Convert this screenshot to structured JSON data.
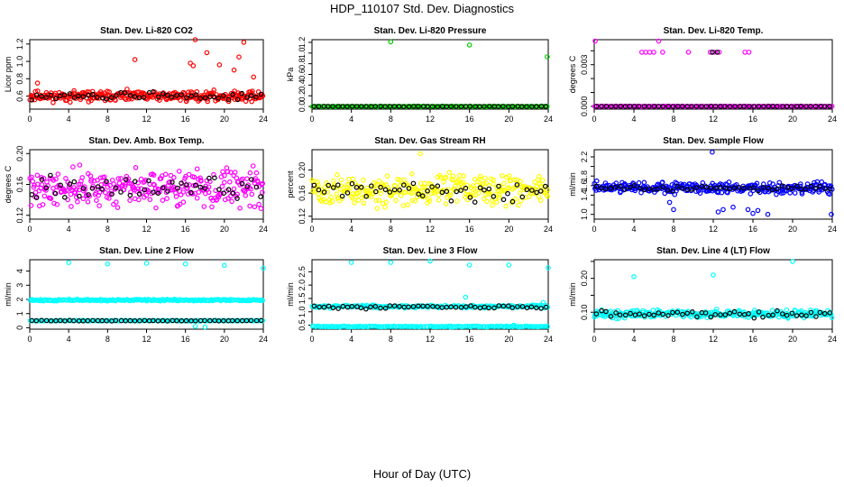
{
  "figure": {
    "title": "HDP_110107  Std. Dev. Diagnostics",
    "xlabel": "Hour of Day (UTC)"
  },
  "colors": {
    "co2": "#ff0000",
    "pressure": "#00cc00",
    "temp": "#ff00ff",
    "box": "#ff00ff",
    "rh": "#ffff00",
    "flow": "#0000ff",
    "line": "#00ffff",
    "median": "#000000"
  },
  "chart_data": [
    {
      "id": "co2",
      "type": "scatter",
      "title": "Stan. Dev. Li-820 CO2",
      "ylabel": "Licor ppm",
      "xlim": [
        0,
        24
      ],
      "xticks": [
        0,
        4,
        8,
        12,
        16,
        20,
        24
      ],
      "ylim": [
        0.45,
        1.25
      ],
      "yticks": [
        0.6,
        0.8,
        1.0,
        1.2
      ],
      "ytick_labels": [
        "0.6",
        "0.8",
        "1.0",
        "1.2"
      ],
      "series": [
        {
          "name": "all",
          "color": "co2",
          "base": 0.6,
          "spread": 0.05,
          "n": 300,
          "seed": 11,
          "outliers": [
            [
              0.8,
              0.75
            ],
            [
              10.8,
              1.02
            ],
            [
              16.5,
              0.98
            ],
            [
              16.8,
              0.95
            ],
            [
              17.0,
              1.25
            ],
            [
              18.2,
              1.1
            ],
            [
              19.5,
              0.96
            ],
            [
              21.0,
              0.9
            ],
            [
              21.5,
              1.05
            ],
            [
              22.0,
              1.22
            ],
            [
              23.0,
              0.82
            ]
          ]
        },
        {
          "name": "hourly",
          "color": "median",
          "base": 0.6,
          "spread": 0.04,
          "n": 50,
          "seed": 12,
          "outliers": []
        }
      ]
    },
    {
      "id": "pressure",
      "type": "scatter",
      "title": "Stan. Dev. Li-820 Pressure",
      "ylabel": "kPa",
      "xlim": [
        0,
        24
      ],
      "xticks": [
        0,
        4,
        8,
        12,
        16,
        20,
        24
      ],
      "ylim": [
        -0.05,
        1.25
      ],
      "yticks": [
        0.0,
        0.2,
        0.4,
        0.6,
        0.8,
        1.0,
        1.2
      ],
      "ytick_labels": [
        "0.0",
        "0.2",
        "0.4",
        "0.6",
        "0.8",
        "1.0",
        "1.2"
      ],
      "series": [
        {
          "name": "all",
          "color": "pressure",
          "base": 0.0,
          "spread": 0.004,
          "n": 150,
          "seed": 21,
          "outliers": [
            [
              8.0,
              1.21
            ],
            [
              16.0,
              1.15
            ],
            [
              23.9,
              0.93
            ]
          ]
        },
        {
          "name": "hourly",
          "color": "median",
          "base": 0.0,
          "spread": 0.003,
          "n": 50,
          "seed": 22,
          "outliers": []
        }
      ]
    },
    {
      "id": "temp",
      "type": "scatter",
      "title": "Stan. Dev. Li-820 Temp.",
      "ylabel": "degrees C",
      "xlim": [
        0,
        24
      ],
      "xticks": [
        0,
        4,
        8,
        12,
        16,
        20,
        24
      ],
      "ylim": [
        -0.0002,
        0.0048
      ],
      "yticks": [
        0.0,
        0.001,
        0.002,
        0.003,
        0.004
      ],
      "ytick_labels": [
        "0.000",
        "",
        "",
        "0.003",
        ""
      ],
      "series": [
        {
          "name": "all",
          "color": "temp",
          "base": 0.0,
          "spread": 1e-05,
          "n": 150,
          "seed": 31,
          "outliers": [
            [
              0.1,
              0.0047
            ],
            [
              6.5,
              0.0047
            ],
            [
              4.8,
              0.0039
            ],
            [
              5.2,
              0.0039
            ],
            [
              5.6,
              0.0039
            ],
            [
              6.0,
              0.0039
            ],
            [
              6.9,
              0.0039
            ],
            [
              9.5,
              0.0039
            ],
            [
              11.7,
              0.0039
            ],
            [
              12.1,
              0.0039
            ],
            [
              12.6,
              0.0039
            ],
            [
              15.2,
              0.0039
            ],
            [
              15.6,
              0.0039
            ]
          ]
        },
        {
          "name": "hourly",
          "color": "median",
          "base": 0.0,
          "spread": 1e-05,
          "n": 50,
          "seed": 32,
          "outliers": [
            [
              11.9,
              0.0039
            ],
            [
              12.4,
              0.0039
            ]
          ]
        }
      ]
    },
    {
      "id": "box",
      "type": "scatter",
      "title": "Stan. Dev. Amb. Box Temp.",
      "ylabel": "degrees C",
      "xlim": [
        0,
        24
      ],
      "xticks": [
        0,
        4,
        8,
        12,
        16,
        20,
        24
      ],
      "ylim": [
        0.115,
        0.205
      ],
      "yticks": [
        0.12,
        0.16,
        0.2
      ],
      "ytick_labels": [
        "0.12",
        "0.16",
        "0.20"
      ],
      "series": [
        {
          "name": "all",
          "color": "box",
          "base": 0.155,
          "spread": 0.02,
          "n": 300,
          "seed": 41,
          "outliers": []
        },
        {
          "name": "hourly",
          "color": "median",
          "base": 0.155,
          "spread": 0.012,
          "n": 50,
          "seed": 42,
          "outliers": []
        }
      ]
    },
    {
      "id": "rh",
      "type": "scatter",
      "title": "Stan. Dev. Gas Stream RH",
      "ylabel": "percent",
      "xlim": [
        0,
        24
      ],
      "xticks": [
        0,
        4,
        8,
        12,
        16,
        20,
        24
      ],
      "ylim": [
        0.115,
        0.235
      ],
      "yticks": [
        0.12,
        0.16,
        0.2
      ],
      "ytick_labels": [
        "0.12",
        "0.16",
        "0.20"
      ],
      "series": [
        {
          "name": "all",
          "color": "rh",
          "base": 0.165,
          "spread": 0.022,
          "n": 300,
          "seed": 51,
          "outliers": [
            [
              11.0,
              0.228
            ]
          ]
        },
        {
          "name": "hourly",
          "color": "median",
          "base": 0.165,
          "spread": 0.015,
          "n": 50,
          "seed": 52,
          "outliers": []
        }
      ]
    },
    {
      "id": "flow",
      "type": "scatter",
      "title": "Stan. Dev. Sample Flow",
      "ylabel": "ml/min",
      "xlim": [
        0,
        24
      ],
      "xticks": [
        0,
        4,
        8,
        12,
        16,
        20,
        24
      ],
      "ylim": [
        0.9,
        2.35
      ],
      "yticks": [
        1.0,
        1.2,
        1.4,
        1.6,
        1.8,
        2.0,
        2.2
      ],
      "ytick_labels": [
        "1.0",
        "",
        "1.4",
        "1.6",
        "1.8",
        "",
        "2.2"
      ],
      "series": [
        {
          "name": "all",
          "color": "flow",
          "base": 1.55,
          "spread": 0.1,
          "n": 300,
          "seed": 61,
          "outliers": [
            [
              11.9,
              2.3
            ],
            [
              12.5,
              1.05
            ],
            [
              13.0,
              1.1
            ],
            [
              14.0,
              1.15
            ],
            [
              15.5,
              1.1
            ],
            [
              16.0,
              1.02
            ],
            [
              16.5,
              1.08
            ],
            [
              17.5,
              1.0
            ],
            [
              23.9,
              1.0
            ],
            [
              7.6,
              1.25
            ],
            [
              8.0,
              1.1
            ]
          ]
        },
        {
          "name": "hourly",
          "color": "median",
          "base": 1.55,
          "spread": 0.05,
          "n": 50,
          "seed": 62,
          "outliers": []
        }
      ]
    },
    {
      "id": "line2",
      "type": "scatter",
      "title": "Stan. Dev. Line 2 Flow",
      "ylabel": "ml/min",
      "xlim": [
        0,
        24
      ],
      "xticks": [
        0,
        4,
        8,
        12,
        16,
        20,
        24
      ],
      "ylim": [
        -0.1,
        4.8
      ],
      "yticks": [
        0,
        1,
        2,
        3,
        4
      ],
      "ytick_labels": [
        "0",
        "1",
        "2",
        "3",
        "4"
      ],
      "series": [
        {
          "name": "all-high",
          "color": "line",
          "base": 1.95,
          "spread": 0.05,
          "n": 200,
          "seed": 71,
          "outliers": [
            [
              4.0,
              4.6
            ],
            [
              8.0,
              4.5
            ],
            [
              12.0,
              4.55
            ],
            [
              16.0,
              4.5
            ],
            [
              20.0,
              4.4
            ],
            [
              24.0,
              4.2
            ],
            [
              17.0,
              0.1
            ],
            [
              18.0,
              0.05
            ]
          ]
        },
        {
          "name": "all-low",
          "color": "line",
          "base": 0.5,
          "spread": 0.02,
          "n": 150,
          "seed": 72,
          "outliers": []
        },
        {
          "name": "hourly",
          "color": "median",
          "base": 0.5,
          "spread": 0.02,
          "n": 50,
          "seed": 73,
          "outliers": []
        }
      ]
    },
    {
      "id": "line3",
      "type": "scatter",
      "title": "Stan. Dev. Line 3 Flow",
      "ylabel": "ml/min",
      "xlim": [
        0,
        24
      ],
      "xticks": [
        0,
        4,
        8,
        12,
        16,
        20,
        24
      ],
      "ylim": [
        0.35,
        2.95
      ],
      "yticks": [
        0.5,
        1.0,
        1.5,
        2.0,
        2.5
      ],
      "ytick_labels": [
        "0.5",
        "1.0",
        "1.5",
        "2.0",
        "2.5"
      ],
      "series": [
        {
          "name": "all-high",
          "color": "line",
          "base": 1.2,
          "spread": 0.05,
          "n": 200,
          "seed": 81,
          "outliers": [
            [
              4.0,
              2.85
            ],
            [
              8.0,
              2.85
            ],
            [
              12.0,
              2.9
            ],
            [
              16.0,
              2.75
            ],
            [
              20.0,
              2.75
            ],
            [
              24.0,
              2.65
            ],
            [
              15.6,
              1.55
            ],
            [
              20.5,
              0.5
            ],
            [
              23.5,
              1.35
            ]
          ]
        },
        {
          "name": "all-low",
          "color": "line",
          "base": 0.45,
          "spread": 0.015,
          "n": 150,
          "seed": 82,
          "outliers": []
        },
        {
          "name": "hourly",
          "color": "median",
          "base": 1.18,
          "spread": 0.05,
          "n": 50,
          "seed": 83,
          "outliers": []
        }
      ]
    },
    {
      "id": "line4",
      "type": "scatter",
      "title": "Stan. Dev. Line 4 (LT) Flow",
      "ylabel": "ml/min",
      "xlim": [
        0,
        24
      ],
      "xticks": [
        0,
        4,
        8,
        12,
        16,
        20,
        24
      ],
      "ylim": [
        0.05,
        0.255
      ],
      "yticks": [
        0.1,
        0.15,
        0.2,
        0.25
      ],
      "ytick_labels": [
        "0.10",
        "",
        "0.20",
        ""
      ],
      "series": [
        {
          "name": "all",
          "color": "line",
          "base": 0.095,
          "spread": 0.01,
          "n": 300,
          "seed": 91,
          "outliers": [
            [
              4.0,
              0.205
            ],
            [
              12.0,
              0.21
            ],
            [
              20.0,
              0.25
            ]
          ]
        },
        {
          "name": "hourly",
          "color": "median",
          "base": 0.095,
          "spread": 0.01,
          "n": 50,
          "seed": 92,
          "outliers": []
        }
      ]
    }
  ]
}
